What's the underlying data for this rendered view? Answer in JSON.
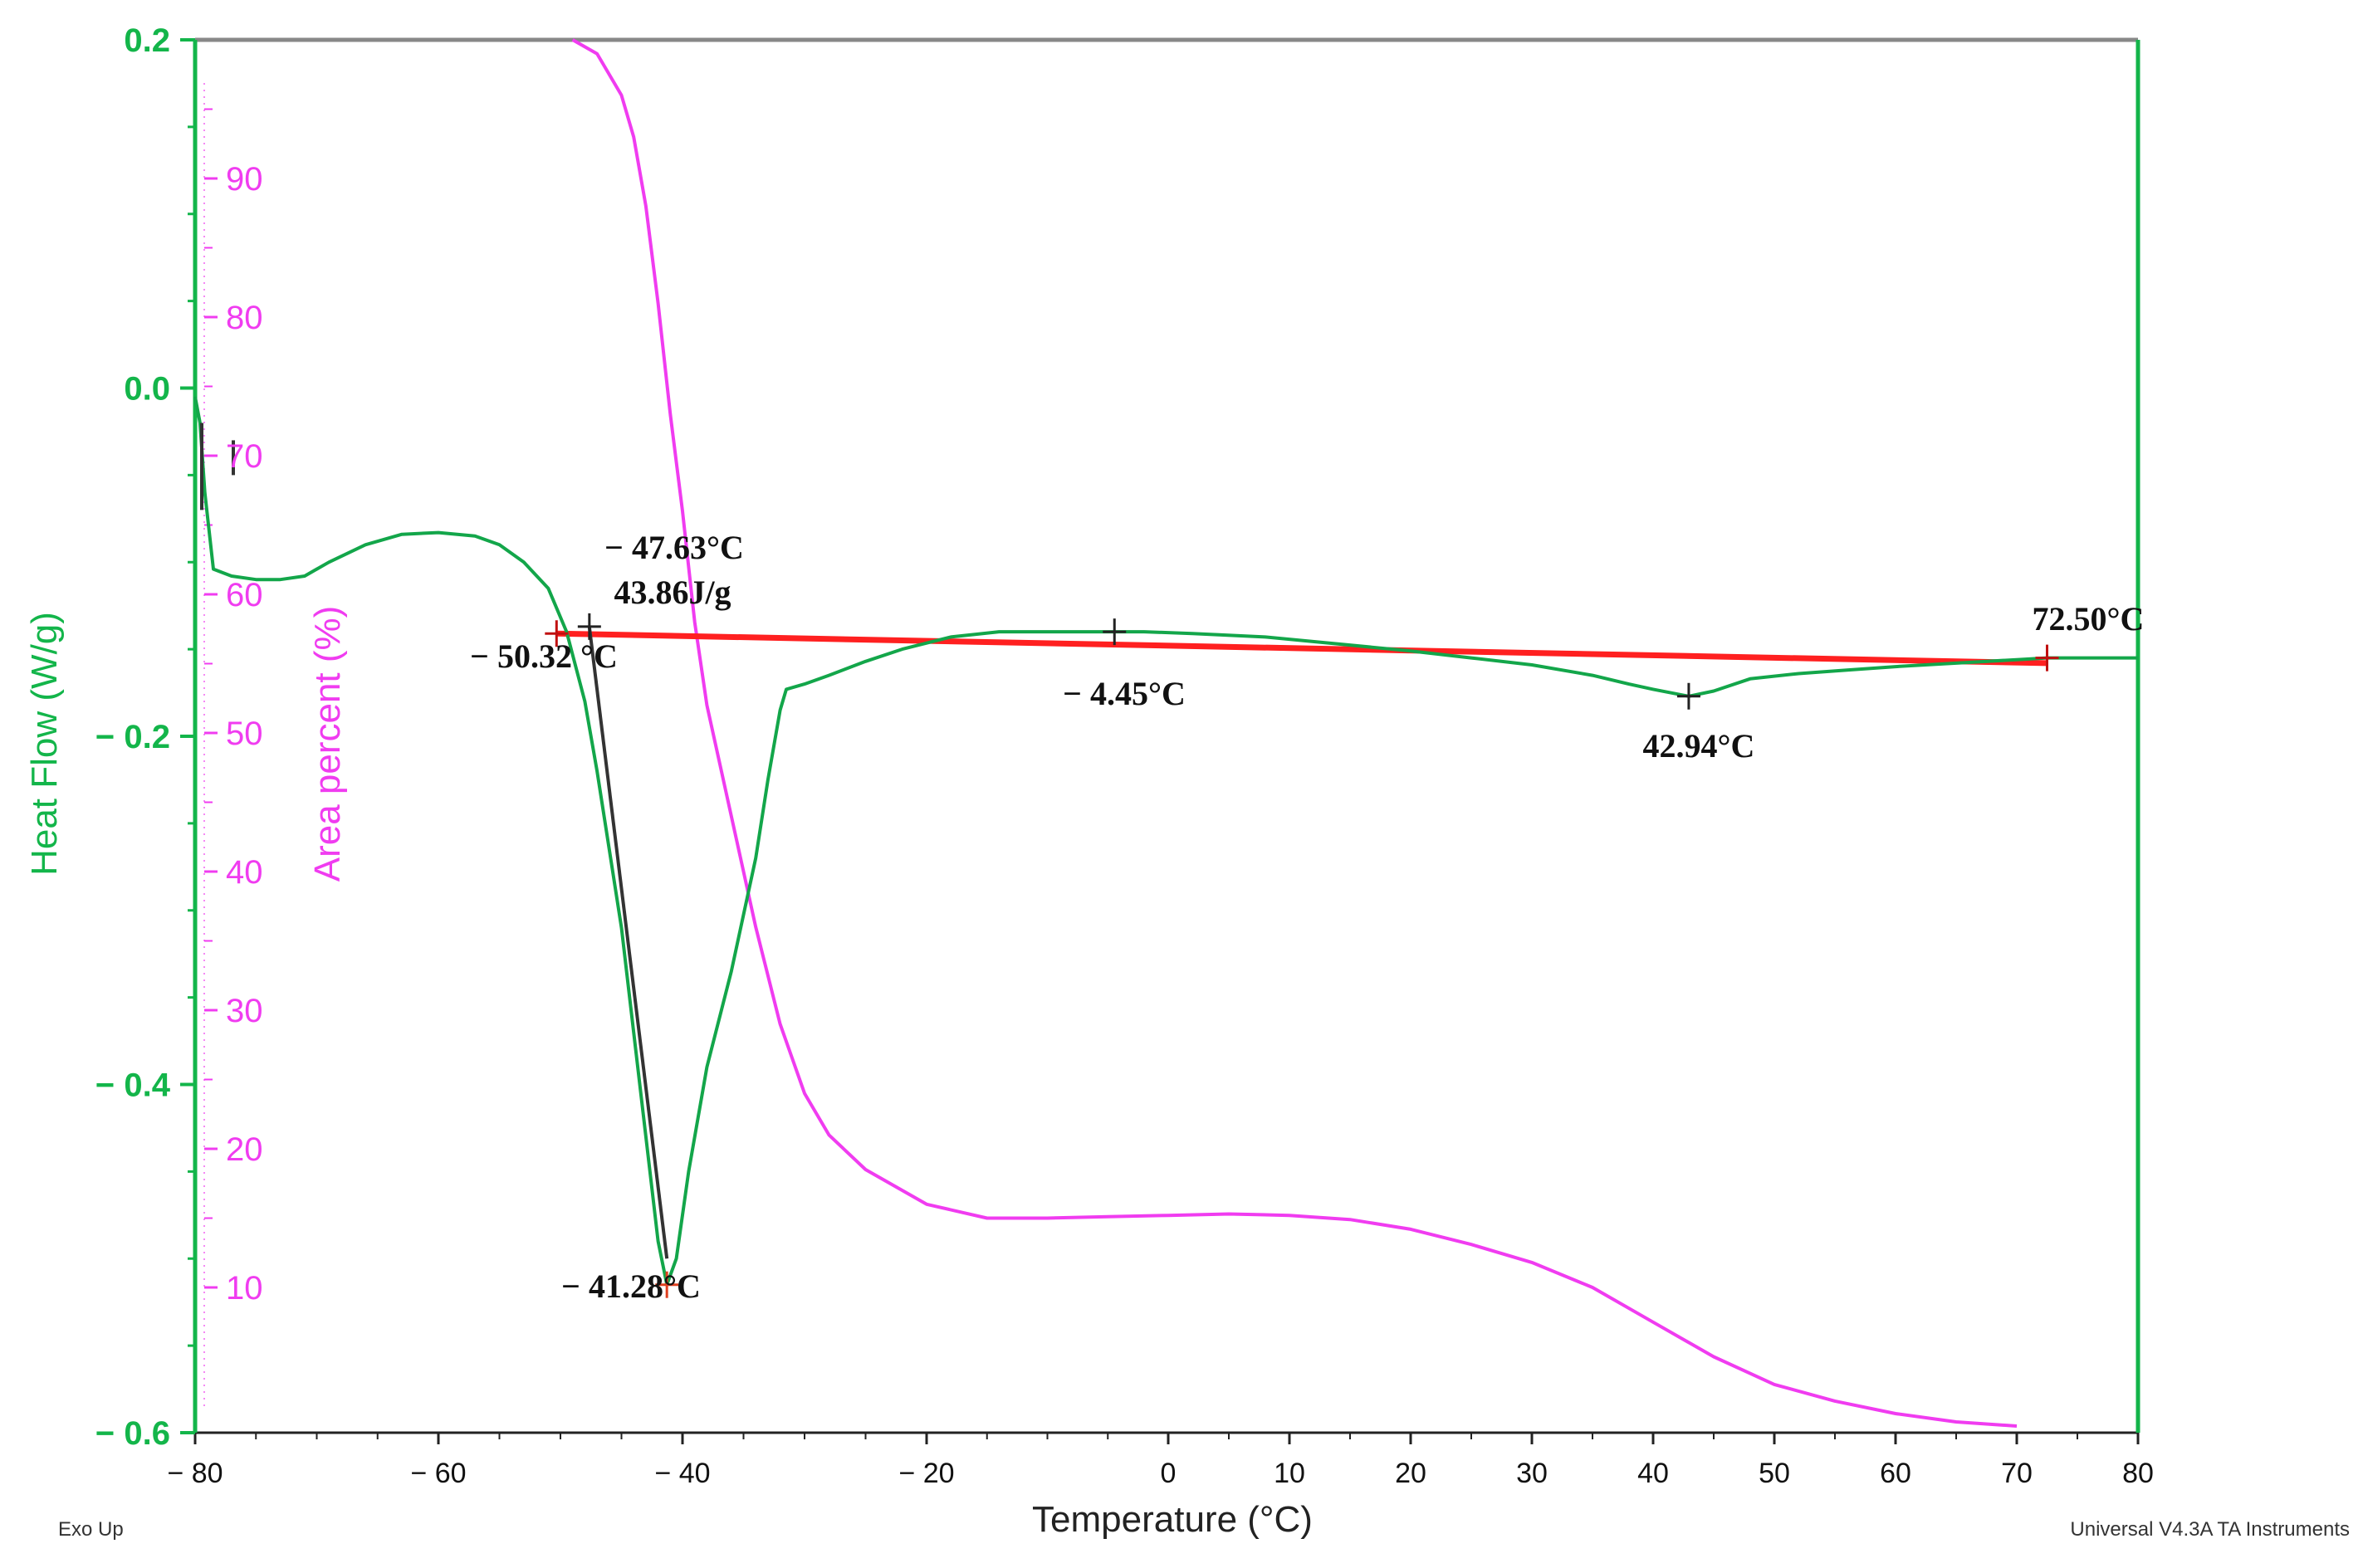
{
  "chart_data": {
    "type": "line",
    "title": "",
    "xlabel": "Temperature (°C)",
    "ylabel_left": "Heat Flow (W/g)",
    "ylabel_right": "Area percent (%)",
    "footer_left": "Exo Up",
    "footer_right": "Universal V4.3A TA Instruments",
    "x_ticks": [
      -80,
      -60,
      -40,
      -20,
      0,
      10,
      20,
      30,
      40,
      50,
      60,
      70,
      80
    ],
    "x_tick_labels": [
      "− 80",
      "− 60",
      "− 40",
      "− 20",
      "0",
      "10",
      "20",
      "30",
      "40",
      "50",
      "60",
      "70",
      "80"
    ],
    "xlim": [
      -80,
      80
    ],
    "heatflow_ticks": [
      0.2,
      0.0,
      -0.2,
      -0.4,
      -0.6
    ],
    "heatflow_tick_labels": [
      "0.2",
      "0.0",
      "− 0.2",
      "− 0.4",
      "− 0.6"
    ],
    "heatflow_ylim": [
      -0.6,
      0.2
    ],
    "area_ticks": [
      90,
      80,
      70,
      60,
      50,
      40,
      30,
      20,
      10
    ],
    "area_tick_labels": [
      "90",
      "80",
      "70",
      "60",
      "50",
      "40",
      "30",
      "20",
      "10"
    ],
    "colors": {
      "heat_flow": "#13a64a",
      "area_percent": "#f03cf0",
      "baseline": "#ff2020",
      "tangent": "#333333",
      "frame_top": "#888888",
      "axis_green": "#13b54a"
    },
    "series": [
      {
        "name": "Heat Flow",
        "axis": "left",
        "x": [
          -80,
          -79.6,
          -79.2,
          -78.5,
          -77,
          -75,
          -73,
          -71,
          -69,
          -66,
          -63,
          -60,
          -57,
          -55,
          -53,
          -51,
          -49.5,
          -48,
          -47,
          -46,
          -45,
          -44,
          -43,
          -42,
          -41.28,
          -40.5,
          -39.5,
          -38,
          -36,
          -34,
          -33,
          -32,
          -31.5,
          -30,
          -28,
          -25,
          -22,
          -18,
          -14,
          -10,
          -6,
          -4.45,
          -2,
          2,
          8,
          14,
          20,
          25,
          30,
          35,
          38,
          40,
          42.94,
          45,
          48,
          52,
          56,
          60,
          65,
          70,
          72.5,
          76,
          80
        ],
        "y": [
          -0.005,
          -0.02,
          -0.06,
          -0.104,
          -0.108,
          -0.11,
          -0.11,
          -0.108,
          -0.1,
          -0.09,
          -0.084,
          -0.083,
          -0.085,
          -0.09,
          -0.1,
          -0.115,
          -0.14,
          -0.18,
          -0.22,
          -0.265,
          -0.31,
          -0.37,
          -0.43,
          -0.49,
          -0.515,
          -0.5,
          -0.45,
          -0.39,
          -0.335,
          -0.27,
          -0.225,
          -0.185,
          -0.173,
          -0.17,
          -0.165,
          -0.157,
          -0.15,
          -0.143,
          -0.14,
          -0.14,
          -0.14,
          -0.14,
          -0.14,
          -0.141,
          -0.143,
          -0.147,
          -0.151,
          -0.155,
          -0.159,
          -0.165,
          -0.17,
          -0.173,
          -0.177,
          -0.174,
          -0.167,
          -0.164,
          -0.162,
          -0.16,
          -0.158,
          -0.156,
          -0.155,
          -0.155,
          -0.155
        ]
      },
      {
        "name": "Area percent",
        "axis": "right",
        "x": [
          -49,
          -47,
          -45,
          -44,
          -43,
          -42,
          -41,
          -40,
          -39,
          -38,
          -36,
          -34,
          -32,
          -30,
          -28,
          -25,
          -20,
          -15,
          -10,
          -5,
          0,
          5,
          10,
          15,
          20,
          25,
          30,
          35,
          40,
          45,
          50,
          55,
          60,
          65,
          70
        ],
        "y": [
          100,
          99,
          96,
          93,
          88,
          81,
          73,
          66,
          58,
          52,
          44,
          36,
          29,
          24,
          21,
          18.5,
          16,
          15,
          15,
          15.1,
          15.2,
          15.3,
          15.2,
          14.9,
          14.2,
          13.1,
          11.8,
          10,
          7.5,
          5,
          3,
          1.8,
          0.9,
          0.3,
          0
        ]
      }
    ],
    "baseline": {
      "x": [
        -50.32,
        72.5
      ],
      "y": [
        -0.141,
        -0.158
      ]
    },
    "tangent": {
      "x": [
        -47.63,
        -41.28
      ],
      "y": [
        -0.137,
        -0.5
      ]
    },
    "annotations": [
      {
        "text": "− 50.32 °C",
        "x": -50.32,
        "y": -0.141
      },
      {
        "text": "− 47.63°C",
        "x": -47.63,
        "y": -0.095
      },
      {
        "text": "43.86J/g",
        "x": -47.63,
        "y": -0.118
      },
      {
        "text": "− 41.28°C",
        "x": -41.28,
        "y": -0.515
      },
      {
        "text": "− 4.45°C",
        "x": -4.45,
        "y": -0.14
      },
      {
        "text": "42.94°C",
        "x": 42.94,
        "y": -0.177
      },
      {
        "text": "72.50°C",
        "x": 72.5,
        "y": -0.155
      }
    ]
  }
}
